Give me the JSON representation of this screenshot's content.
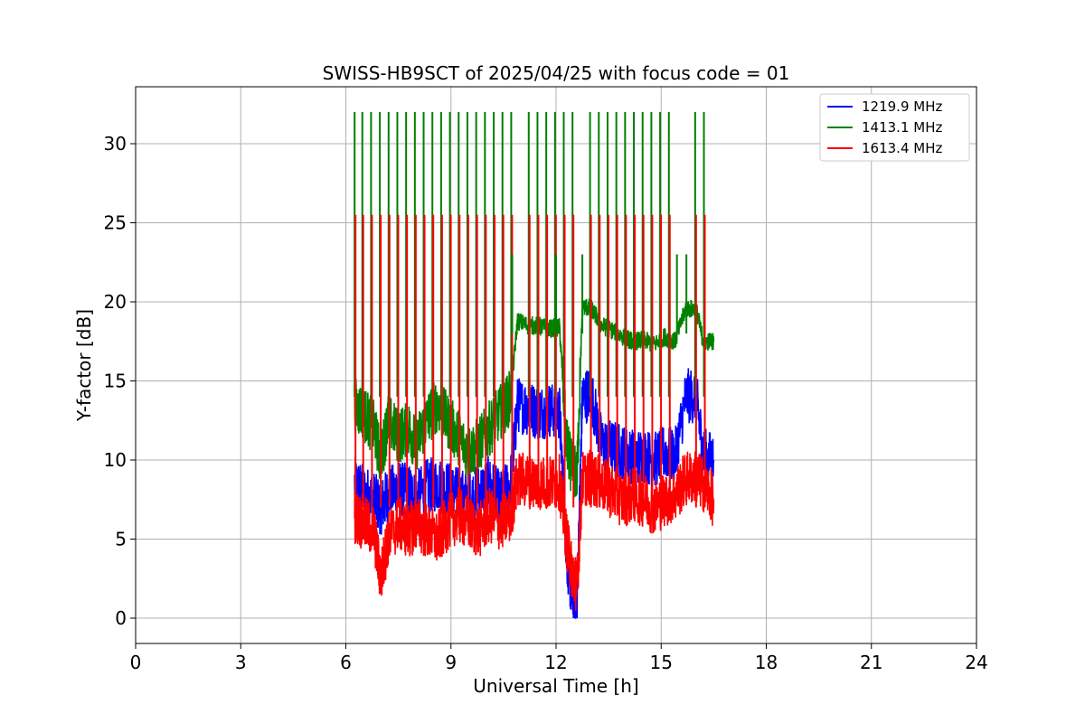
{
  "chart_data": {
    "type": "line",
    "title": "SWISS-HB9SCT of 2025/04/25 with focus code = 01",
    "xlabel": "Universal Time [h]",
    "ylabel": "Y-factor [dB]",
    "xlim": [
      0,
      24
    ],
    "ylim": [
      -1.6,
      33.6
    ],
    "xticks": [
      0,
      3,
      6,
      9,
      12,
      15,
      18,
      21,
      24
    ],
    "yticks": [
      0,
      5,
      10,
      15,
      20,
      25,
      30
    ],
    "grid": true,
    "legend_position": "top-right",
    "series": [
      {
        "name": "1219.9 MHz",
        "color": "#0000ff",
        "x": [
          6.25,
          6.5,
          6.8,
          7.0,
          7.2,
          7.5,
          7.8,
          8.0,
          8.3,
          8.6,
          8.9,
          9.2,
          9.5,
          9.8,
          10.1,
          10.4,
          10.7,
          10.9,
          11.2,
          11.5,
          11.8,
          12.1,
          12.3,
          12.45,
          12.6,
          12.75,
          13.0,
          13.3,
          13.6,
          13.9,
          14.2,
          14.5,
          14.8,
          15.1,
          15.4,
          15.7,
          16.0,
          16.2,
          16.5
        ],
        "y": [
          8.5,
          8.0,
          7.5,
          7.0,
          7.8,
          8.2,
          8.0,
          7.5,
          8.3,
          8.5,
          8.2,
          7.8,
          7.5,
          8.0,
          8.5,
          7.5,
          8.5,
          13.5,
          13.3,
          13.0,
          13.2,
          13.0,
          4.0,
          1.5,
          1.0,
          14.0,
          14.2,
          11.0,
          10.8,
          10.5,
          10.2,
          10.3,
          10.0,
          10.5,
          10.2,
          14.0,
          14.1,
          10.3,
          10.0
        ]
      },
      {
        "name": "1413.1 MHz",
        "color": "#008000",
        "x": [
          6.25,
          6.5,
          6.8,
          7.0,
          7.2,
          7.5,
          7.8,
          8.0,
          8.3,
          8.6,
          8.9,
          9.2,
          9.5,
          9.8,
          10.1,
          10.4,
          10.7,
          10.9,
          11.2,
          11.5,
          11.8,
          12.1,
          12.3,
          12.45,
          12.6,
          12.75,
          13.0,
          13.3,
          13.6,
          13.9,
          14.2,
          14.5,
          14.8,
          15.1,
          15.4,
          15.7,
          16.0,
          16.2,
          16.5
        ],
        "y": [
          13.5,
          13.0,
          12.0,
          10.0,
          12.5,
          11.5,
          12.0,
          11.0,
          12.5,
          13.5,
          12.5,
          11.5,
          10.5,
          11.0,
          12.0,
          13.0,
          14.0,
          18.8,
          18.5,
          18.5,
          18.3,
          18.4,
          11.0,
          9.5,
          9.0,
          19.7,
          19.6,
          18.5,
          18.2,
          17.8,
          17.5,
          17.6,
          17.3,
          17.8,
          17.5,
          19.6,
          19.5,
          17.5,
          17.5
        ]
      },
      {
        "name": "1613.4 MHz",
        "color": "#ff0000",
        "x": [
          6.25,
          6.5,
          6.8,
          7.0,
          7.2,
          7.5,
          7.8,
          8.0,
          8.3,
          8.6,
          8.9,
          9.2,
          9.5,
          9.8,
          10.1,
          10.4,
          10.7,
          10.9,
          11.2,
          11.5,
          11.8,
          12.1,
          12.3,
          12.45,
          12.6,
          12.75,
          13.0,
          13.3,
          13.6,
          13.9,
          14.2,
          14.5,
          14.8,
          15.1,
          15.4,
          15.7,
          16.0,
          16.2,
          16.5
        ],
        "y": [
          6.5,
          6.0,
          5.5,
          2.5,
          5.0,
          6.0,
          5.5,
          6.0,
          5.5,
          5.0,
          6.0,
          6.5,
          6.0,
          5.5,
          6.5,
          6.0,
          6.5,
          8.8,
          8.7,
          8.6,
          8.5,
          8.6,
          5.0,
          3.0,
          2.0,
          8.8,
          8.9,
          8.5,
          8.0,
          7.5,
          7.8,
          7.5,
          7.0,
          7.5,
          7.8,
          8.8,
          8.9,
          8.5,
          7.5
        ]
      }
    ],
    "spikes": {
      "green_peak_y": 32.0,
      "red_peak_y": 25.5,
      "green_small_peak_y": 23.0,
      "x": [
        6.25,
        6.47,
        6.72,
        6.97,
        7.22,
        7.47,
        7.72,
        7.97,
        8.22,
        8.47,
        8.72,
        8.97,
        9.22,
        9.47,
        9.72,
        9.97,
        10.22,
        10.47,
        10.72,
        11.22,
        11.47,
        11.72,
        11.97,
        12.22,
        12.47,
        12.97,
        13.22,
        13.47,
        13.72,
        13.97,
        14.22,
        14.47,
        14.72,
        14.97,
        15.22,
        15.97,
        16.22
      ],
      "green_small_x": [
        10.75,
        12.0,
        12.75,
        15.45,
        15.72
      ]
    }
  }
}
